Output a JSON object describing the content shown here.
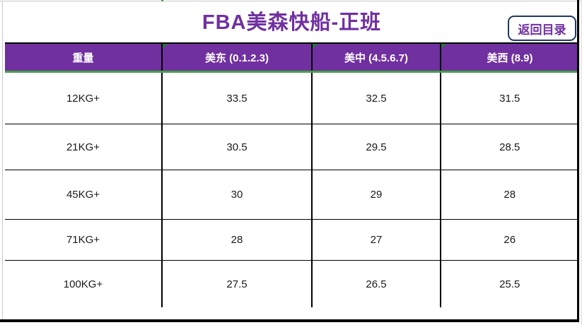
{
  "colors": {
    "purple": "#7030A0",
    "header_bg": "#7030A0",
    "green_line": "#43A047",
    "triangle_green": "#1E7B34",
    "button_border": "#1F3864",
    "grid_black": "#000000",
    "gutter_gray": "#C8C8C8"
  },
  "header": {
    "title": "FBA美森快船-正班",
    "back_button_label": "返回目录"
  },
  "table": {
    "columns": [
      "重量",
      "美东 (0.1.2.3)",
      "美中 (4.5.6.7)",
      "美西 (8.9)"
    ],
    "rows": [
      [
        "12KG+",
        "33.5",
        "32.5",
        "31.5"
      ],
      [
        "21KG+",
        "30.5",
        "29.5",
        "28.5"
      ],
      [
        "45KG+",
        "30",
        "29",
        "28"
      ],
      [
        "71KG+",
        "28",
        "27",
        "26"
      ],
      [
        "100KG+",
        "27.5",
        "26.5",
        "25.5"
      ]
    ]
  }
}
